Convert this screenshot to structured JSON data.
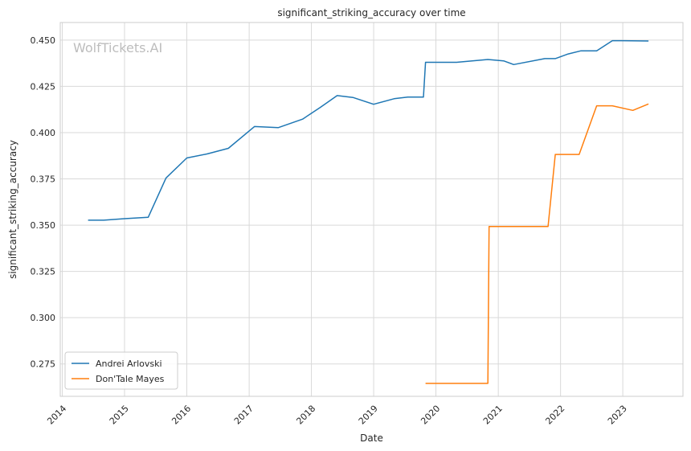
{
  "chart_data": {
    "type": "line",
    "title": "significant_striking_accuracy over time",
    "xlabel": "Date",
    "ylabel": "significant_striking_accuracy",
    "watermark": "WolfTickets.AI",
    "x_ticks": [
      "2014",
      "2015",
      "2016",
      "2017",
      "2018",
      "2019",
      "2020",
      "2021",
      "2022",
      "2023"
    ],
    "y_ticks": [
      "0.275",
      "0.300",
      "0.325",
      "0.350",
      "0.375",
      "0.400",
      "0.425",
      "0.450"
    ],
    "xlim": [
      "2013-12-20",
      "2023-12-20"
    ],
    "ylim": [
      0.2575,
      0.4595
    ],
    "grid": true,
    "legend_position": "bottom-left",
    "colors": {
      "Andrei Arlovski": "#1f77b4",
      "Don'Tale Mayes": "#ff7f0e",
      "grid": "#d9d9d9",
      "axes": "#cccccc"
    },
    "series": [
      {
        "name": "Andrei Arlovski",
        "color": "#1f77b4",
        "points": [
          [
            "2014-06-01",
            0.3527
          ],
          [
            "2014-09-01",
            0.3527
          ],
          [
            "2015-01-01",
            0.3535
          ],
          [
            "2015-05-20",
            0.3543
          ],
          [
            "2015-09-01",
            0.3755
          ],
          [
            "2016-01-01",
            0.3863
          ],
          [
            "2016-05-01",
            0.3885
          ],
          [
            "2016-09-01",
            0.3915
          ],
          [
            "2017-02-01",
            0.4033
          ],
          [
            "2017-06-20",
            0.4027
          ],
          [
            "2017-11-10",
            0.4073
          ],
          [
            "2018-02-20",
            0.4135
          ],
          [
            "2018-06-01",
            0.42
          ],
          [
            "2018-09-01",
            0.419
          ],
          [
            "2019-01-01",
            0.4153
          ],
          [
            "2019-05-01",
            0.4183
          ],
          [
            "2019-07-20",
            0.4192
          ],
          [
            "2019-10-20",
            0.4192
          ],
          [
            "2019-11-01",
            0.438
          ],
          [
            "2020-05-01",
            0.438
          ],
          [
            "2020-11-01",
            0.4395
          ],
          [
            "2021-02-01",
            0.4388
          ],
          [
            "2021-04-01",
            0.4368
          ],
          [
            "2021-10-01",
            0.44
          ],
          [
            "2021-12-01",
            0.44
          ],
          [
            "2022-02-15",
            0.4425
          ],
          [
            "2022-05-01",
            0.4442
          ],
          [
            "2022-08-01",
            0.4442
          ],
          [
            "2022-11-01",
            0.4497
          ],
          [
            "2023-01-01",
            0.4497
          ],
          [
            "2023-06-01",
            0.4495
          ]
        ]
      },
      {
        "name": "Don'Tale Mayes",
        "color": "#ff7f0e",
        "points": [
          [
            "2019-11-01",
            0.2645
          ],
          [
            "2020-11-01",
            0.2645
          ],
          [
            "2020-11-08",
            0.3493
          ],
          [
            "2021-10-20",
            0.3493
          ],
          [
            "2021-12-01",
            0.3882
          ],
          [
            "2022-04-20",
            0.3882
          ],
          [
            "2022-08-01",
            0.4145
          ],
          [
            "2022-11-01",
            0.4145
          ],
          [
            "2023-03-01",
            0.412
          ],
          [
            "2023-06-01",
            0.4155
          ]
        ]
      }
    ]
  }
}
